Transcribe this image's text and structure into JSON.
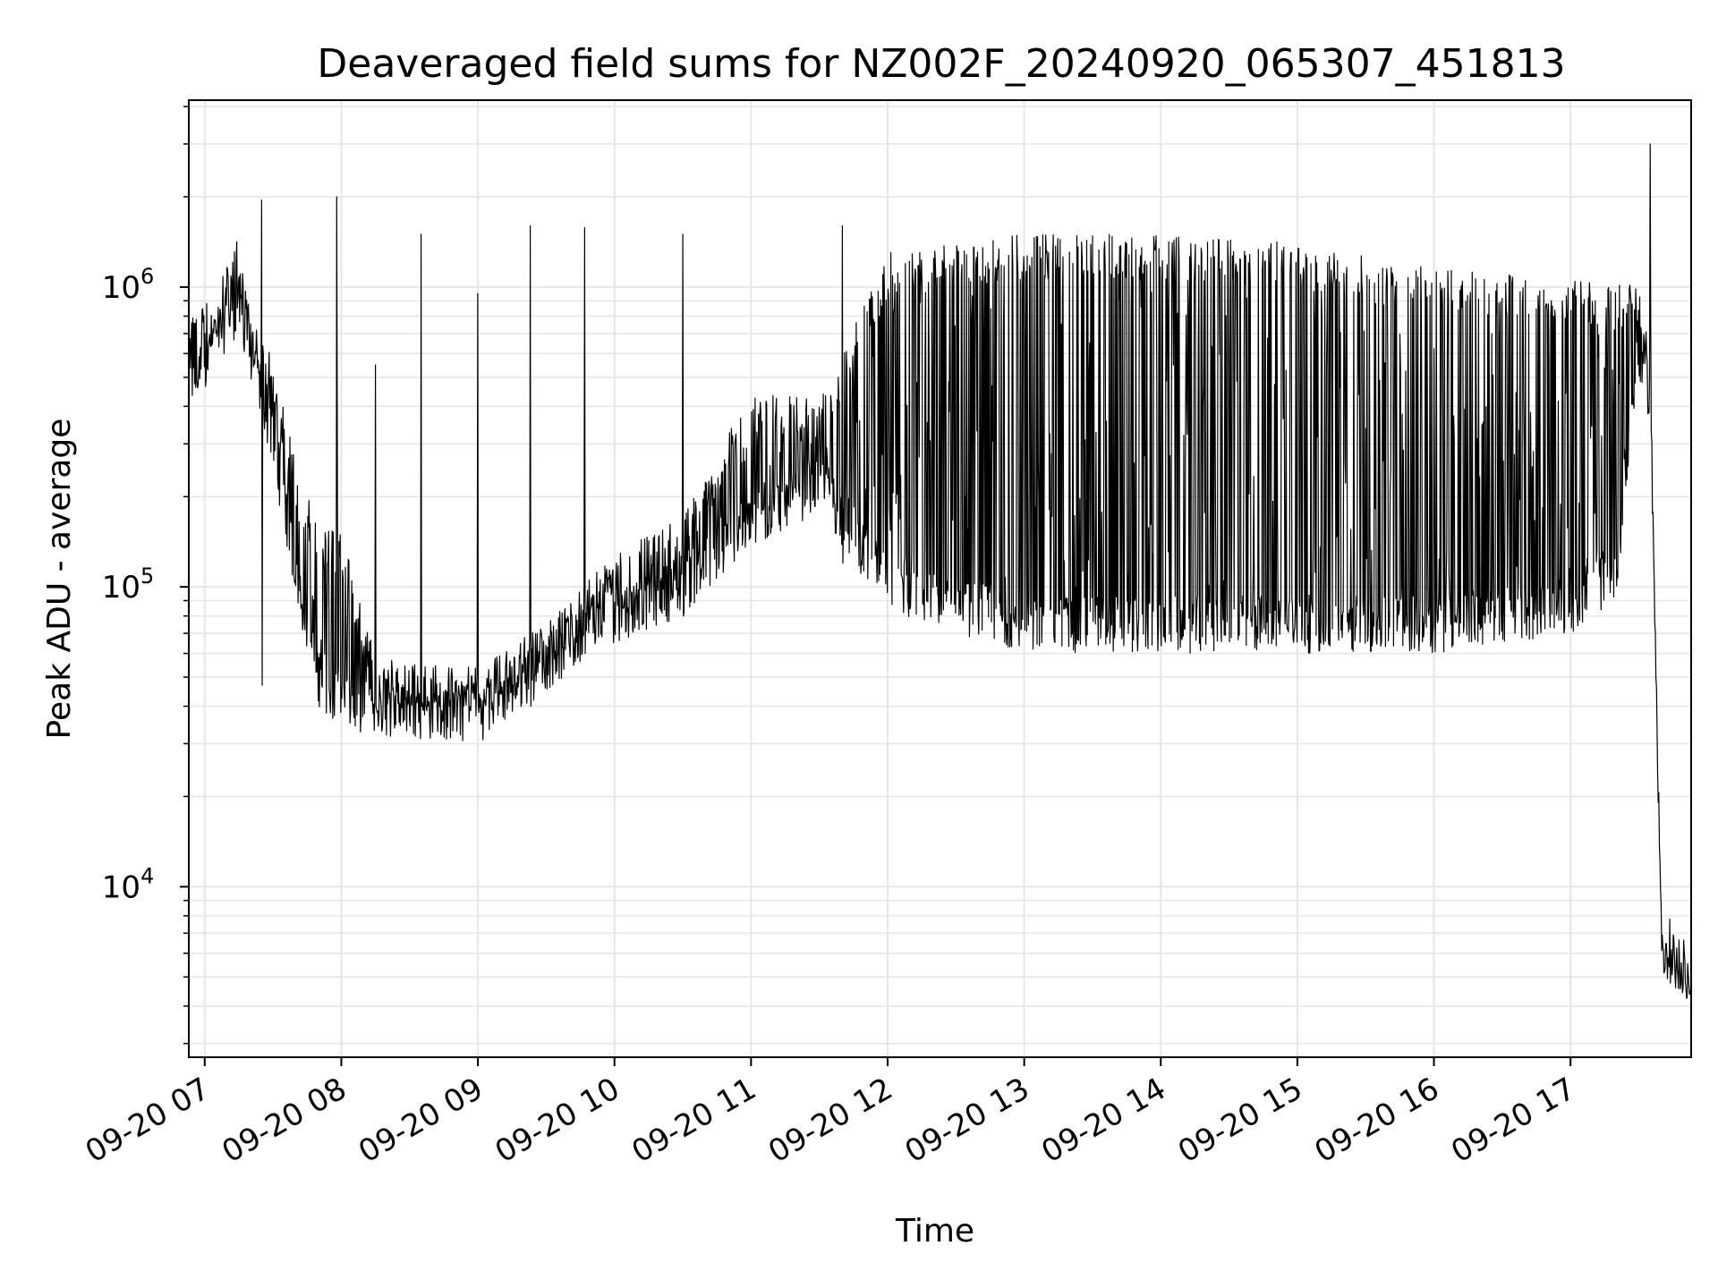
{
  "chart_data": {
    "type": "line",
    "title": "Deaveraged field sums for NZ002F_20240920_065307_451813",
    "xlabel": "Time",
    "ylabel": "Peak ADU - average",
    "yscale": "log",
    "ylim": [
      2700,
      4200000
    ],
    "xlim": [
      "2024-09-20 06:53",
      "2024-09-20 17:53"
    ],
    "grid": true,
    "line_color": "#000000",
    "x_ticks": [
      {
        "t": "2024-09-20 07:00",
        "label": "09-20 07"
      },
      {
        "t": "2024-09-20 08:00",
        "label": "09-20 08"
      },
      {
        "t": "2024-09-20 09:00",
        "label": "09-20 09"
      },
      {
        "t": "2024-09-20 10:00",
        "label": "09-20 10"
      },
      {
        "t": "2024-09-20 11:00",
        "label": "09-20 11"
      },
      {
        "t": "2024-09-20 12:00",
        "label": "09-20 12"
      },
      {
        "t": "2024-09-20 13:00",
        "label": "09-20 13"
      },
      {
        "t": "2024-09-20 14:00",
        "label": "09-20 14"
      },
      {
        "t": "2024-09-20 15:00",
        "label": "09-20 15"
      },
      {
        "t": "2024-09-20 16:00",
        "label": "09-20 16"
      },
      {
        "t": "2024-09-20 17:00",
        "label": "09-20 17"
      }
    ],
    "y_ticks": [
      {
        "value": 10000,
        "base": "10",
        "exp": "4"
      },
      {
        "value": 100000,
        "base": "10",
        "exp": "5"
      },
      {
        "value": 1000000,
        "base": "10",
        "exp": "6"
      }
    ],
    "envelope": {
      "description_units": "time, lower envelope (ADU), upper envelope (ADU)",
      "points": [
        [
          "2024-09-20 06:53",
          350000,
          850000
        ],
        [
          "2024-09-20 07:05",
          550000,
          900000
        ],
        [
          "2024-09-20 07:15",
          700000,
          1700000
        ],
        [
          "2024-09-20 07:20",
          500000,
          800000
        ],
        [
          "2024-09-20 07:30",
          250000,
          600000
        ],
        [
          "2024-09-20 07:40",
          90000,
          260000
        ],
        [
          "2024-09-20 07:50",
          40000,
          160000
        ],
        [
          "2024-09-20 08:00",
          33000,
          150000
        ],
        [
          "2024-09-20 08:15",
          32000,
          60000
        ],
        [
          "2024-09-20 08:30",
          31000,
          55000
        ],
        [
          "2024-09-20 09:00",
          30000,
          55000
        ],
        [
          "2024-09-20 09:30",
          45000,
          75000
        ],
        [
          "2024-09-20 10:00",
          65000,
          130000
        ],
        [
          "2024-09-20 10:30",
          80000,
          170000
        ],
        [
          "2024-09-20 11:00",
          130000,
          450000
        ],
        [
          "2024-09-20 11:30",
          180000,
          420000
        ],
        [
          "2024-09-20 12:00",
          80000,
          1300000
        ],
        [
          "2024-09-20 13:00",
          60000,
          1500000
        ],
        [
          "2024-09-20 14:00",
          60000,
          1500000
        ],
        [
          "2024-09-20 15:00",
          60000,
          1400000
        ],
        [
          "2024-09-20 16:00",
          60000,
          1150000
        ],
        [
          "2024-09-20 17:00",
          70000,
          1100000
        ],
        [
          "2024-09-20 17:20",
          90000,
          1000000
        ],
        [
          "2024-09-20 17:30",
          500000,
          1100000
        ],
        [
          "2024-09-20 17:35",
          350000,
          800000
        ],
        [
          "2024-09-20 17:40",
          5500,
          7000
        ],
        [
          "2024-09-20 17:53",
          4000,
          6000
        ]
      ]
    },
    "spikes": [
      [
        "2024-09-20 07:25",
        1950000,
        47000
      ],
      [
        "2024-09-20 07:58",
        2000000,
        300000
      ],
      [
        "2024-09-20 08:15",
        550000,
        40000
      ],
      [
        "2024-09-20 08:35",
        1500000,
        40000
      ],
      [
        "2024-09-20 09:00",
        950000,
        40000
      ],
      [
        "2024-09-20 09:23",
        1600000,
        40000
      ],
      [
        "2024-09-20 09:47",
        1580000,
        60000
      ],
      [
        "2024-09-20 10:30",
        1500000,
        80000
      ],
      [
        "2024-09-20 11:40",
        1600000,
        120000
      ],
      [
        "2024-09-20 17:35",
        3000000,
        800000
      ]
    ]
  }
}
